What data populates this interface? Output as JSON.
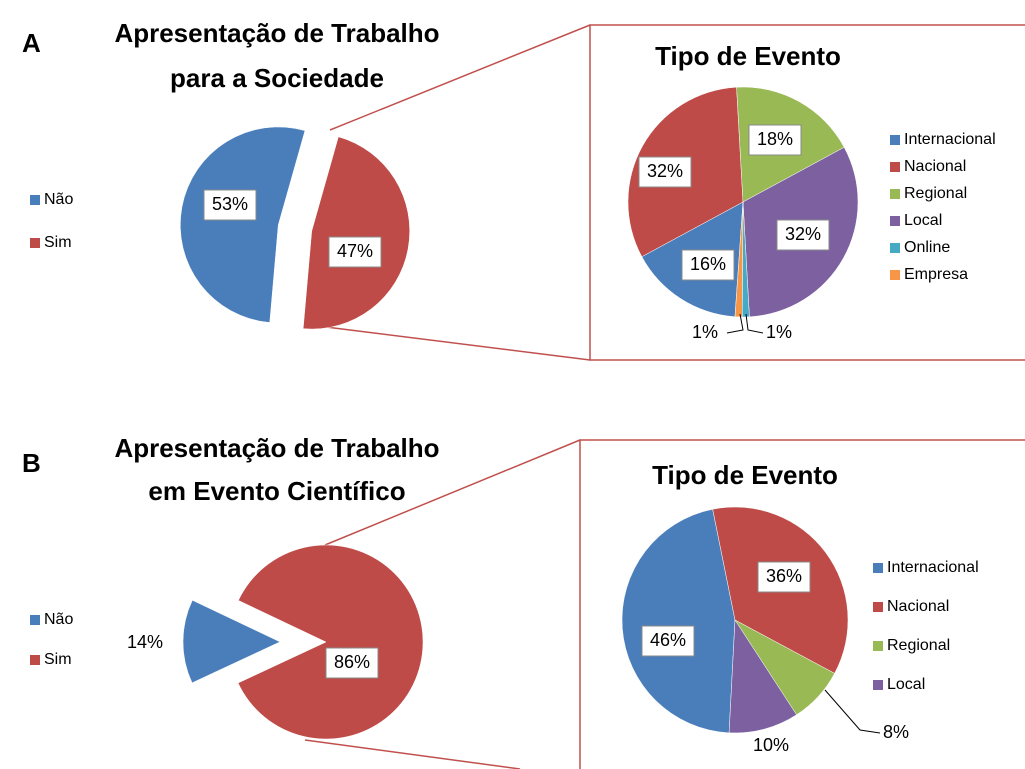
{
  "panel_labels": [
    "A",
    "B"
  ],
  "chart_data": [
    {
      "type": "pie",
      "title": [
        "Apresentação de Trabalho",
        "para a Sociedade"
      ],
      "categories": [
        "Não",
        "Sim"
      ],
      "values": [
        53,
        47
      ],
      "value_labels": [
        "53%",
        "47%"
      ],
      "colors": [
        "#4a7ebb",
        "#be4b48"
      ]
    },
    {
      "type": "pie",
      "title": [
        "Tipo de Evento"
      ],
      "categories": [
        "Internacional",
        "Nacional",
        "Regional",
        "Local",
        "Online",
        "Empresa"
      ],
      "values": [
        16,
        32,
        18,
        32,
        1,
        1
      ],
      "value_labels": [
        "16%",
        "32%",
        "18%",
        "32%",
        "1%",
        "1%"
      ],
      "colors": [
        "#4a7ebb",
        "#be4b48",
        "#98b954",
        "#7d60a0",
        "#46aac5",
        "#f79646"
      ]
    },
    {
      "type": "pie",
      "title": [
        "Apresentação de Trabalho",
        "em Evento Científico"
      ],
      "categories": [
        "Não",
        "Sim"
      ],
      "values": [
        14,
        86
      ],
      "value_labels": [
        "14%",
        "86%"
      ],
      "colors": [
        "#4a7ebb",
        "#be4b48"
      ]
    },
    {
      "type": "pie",
      "title": [
        "Tipo de Evento"
      ],
      "categories": [
        "Internacional",
        "Nacional",
        "Regional",
        "Local"
      ],
      "values": [
        46,
        36,
        8,
        10
      ],
      "value_labels": [
        "46%",
        "36%",
        "8%",
        "10%"
      ],
      "colors": [
        "#4a7ebb",
        "#be4b48",
        "#98b954",
        "#7d60a0"
      ]
    }
  ]
}
